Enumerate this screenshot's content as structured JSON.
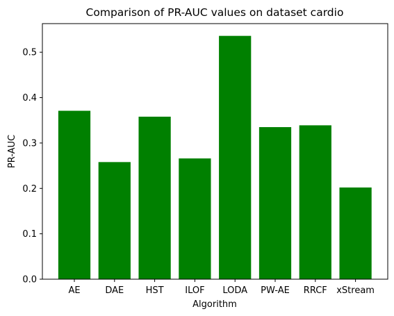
{
  "chart_data": {
    "type": "bar",
    "title": "Comparison of PR-AUC values on dataset cardio",
    "xlabel": "Algorithm",
    "ylabel": "PR-AUC",
    "categories": [
      "AE",
      "DAE",
      "HST",
      "ILOF",
      "LODA",
      "PW-AE",
      "RRCF",
      "xStream"
    ],
    "values": [
      0.371,
      0.258,
      0.358,
      0.266,
      0.536,
      0.335,
      0.339,
      0.202
    ],
    "ylim": [
      0,
      0.563
    ],
    "yticks": [
      0.0,
      0.1,
      0.2,
      0.3,
      0.4,
      0.5
    ],
    "ytick_labels": [
      "0.0",
      "0.1",
      "0.2",
      "0.3",
      "0.4",
      "0.5"
    ],
    "bar_color": "#008000",
    "grid": false
  }
}
